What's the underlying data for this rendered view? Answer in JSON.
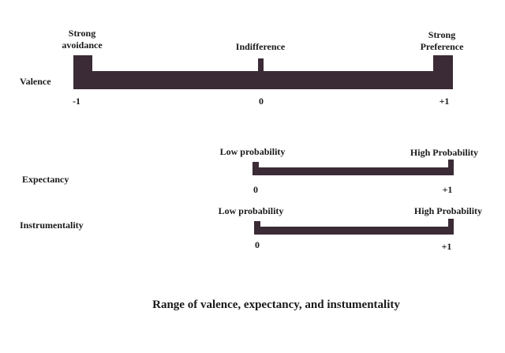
{
  "scales": [
    {
      "name": "Valence",
      "labels": [
        [
          "Strong",
          "avoidance"
        ],
        [
          "Indifference"
        ],
        [
          "Strong",
          "Preference"
        ]
      ],
      "ticks": [
        "-1",
        "0",
        "+1"
      ]
    },
    {
      "name": "Expectancy",
      "labels": [
        [
          "Low probability"
        ],
        [
          "High Probability"
        ]
      ],
      "ticks": [
        "0",
        "+1"
      ]
    },
    {
      "name": "Instrumentality",
      "labels": [
        [
          "Low probability"
        ],
        [
          "High Probability"
        ]
      ],
      "ticks": [
        "0",
        "+1"
      ]
    }
  ],
  "caption": "Range of valence, expectancy, and instumentality"
}
